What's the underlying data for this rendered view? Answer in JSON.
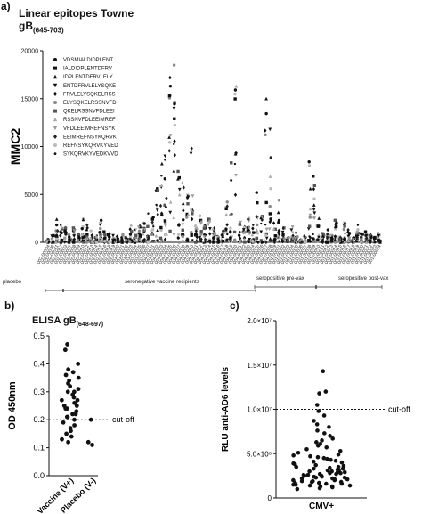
{
  "chart_data": [
    {
      "panel": "a)",
      "type": "scatter",
      "title_line1": "Linear epitopes Towne",
      "title_line2": "gB",
      "title_sub": "(645-703)",
      "ylabel": "MMC2",
      "ylim": [
        0,
        20000
      ],
      "yticks": [
        "0",
        "5000",
        "10000",
        "15000",
        "20000"
      ],
      "legend_position": "top-left",
      "legend": [
        {
          "label": "VDSMIALDIDPLENT",
          "marker": "circle",
          "color": "#111111"
        },
        {
          "label": "IALDIDPLENTDFRV",
          "marker": "square",
          "color": "#111111"
        },
        {
          "label": "IDPLENTDFRVLELY",
          "marker": "triangle-up",
          "color": "#111111"
        },
        {
          "label": "ENTDFRVLELYSQKE",
          "marker": "triangle-down",
          "color": "#111111"
        },
        {
          "label": "FRVLELYSQKELRSS",
          "marker": "diamond",
          "color": "#111111"
        },
        {
          "label": "ELYSQKELRSSNVFD",
          "marker": "circle",
          "color": "#888888"
        },
        {
          "label": "QKELRSSNVFDLEEI",
          "marker": "square",
          "color": "#555555"
        },
        {
          "label": "RSSNVFDLEEIMREF",
          "marker": "triangle-up",
          "color": "#aaaaaa"
        },
        {
          "label": "VFDLEEIMREFNSYK",
          "marker": "triangle-down",
          "color": "#999999"
        },
        {
          "label": "EEIMREFNSYKQRVK",
          "marker": "diamond",
          "color": "#222222"
        },
        {
          "label": "REFNSYKQRVKYVED",
          "marker": "circle",
          "color": "#bbbbbb"
        },
        {
          "label": "SYKQRVKYVEDKVVD",
          "marker": "dot",
          "color": "#111111"
        }
      ],
      "x_labels": [
        "002-00004",
        "002-00006",
        "002-00011",
        "002-00017",
        "002-00003",
        "002-00007",
        "002-00008",
        "002-00009",
        "002-00010",
        "002-00012",
        "002-00013",
        "002-00014",
        "002-00015",
        "002-00016",
        "002-00018",
        "002-00019",
        "002-00020",
        "003-00001",
        "003-00002",
        "003-00003",
        "003-00004",
        "003-00005",
        "003-00006",
        "003-00007",
        "004-00001",
        "004-00002",
        "004-00003",
        "004-00004",
        "004-00005",
        "004-00006",
        "004-00007",
        "004-00008",
        "004-00009",
        "004-00010",
        "004-00011",
        "004-00012",
        "004-00013",
        "004-00014",
        "004-00015",
        "004-00016",
        "004-00017",
        "004-00018",
        "004-00019",
        "004-00020",
        "004-00021",
        "004-00022",
        "004-00023",
        "004-00024",
        "004-00025",
        "004-00026",
        "004-00027",
        "004-00028",
        "004-00029",
        "001-00001",
        "001-00002",
        "001-00003",
        "001-00004",
        "001-00005",
        "001-00006",
        "001-00007",
        "001-00008",
        "001-00009",
        "001-00010",
        "001-00011",
        "001-00012",
        "001-00013",
        "001-00014",
        "001-00015",
        "001-00016",
        "001-00017",
        "001-00018",
        "001-00019",
        "001-00020",
        "001-00021",
        "001-00022",
        "001-00023",
        "001-00024"
      ],
      "group_labels": [
        "placebo",
        "seronegative vaccine recipients",
        "seropositive pre-vax",
        "seropositive post-vax"
      ],
      "group_ranges": [
        [
          0,
          3
        ],
        [
          4,
          47
        ],
        [
          48,
          61
        ],
        [
          62,
          76
        ]
      ],
      "series_max_values": [
        300,
        700,
        2400,
        1800,
        1500,
        800,
        1500,
        900,
        2400,
        1800,
        1200,
        700,
        2300,
        1100,
        900,
        700,
        600,
        800,
        500,
        1800,
        1300,
        1700,
        2000,
        3000,
        2600,
        5600,
        8200,
        9000,
        17200,
        18500,
        7400,
        6200,
        4900,
        9800,
        1700,
        2800,
        1700,
        2400,
        1500,
        600,
        1200,
        4200,
        8300,
        16300,
        2100,
        1600,
        2500,
        1800,
        5200,
        2700,
        15000,
        11800,
        2000,
        4400,
        1500,
        500,
        1600,
        1000,
        300,
        700,
        8400,
        6900,
        2500,
        900,
        1300,
        700,
        2300,
        600,
        2000,
        1300,
        500,
        1800,
        900,
        1100,
        800,
        500,
        900
      ]
    },
    {
      "panel": "b)",
      "type": "scatter",
      "title": "ELISA gB",
      "title_sub": "(648-697)",
      "ylabel": "OD 450nm",
      "ylim": [
        0.0,
        0.5
      ],
      "yticks": [
        "0.0",
        "0.1",
        "0.2",
        "0.3",
        "0.4",
        "0.5"
      ],
      "categories": [
        "Vaccine (V+)",
        "Placebo (V-)"
      ],
      "cutoff": 0.2,
      "cutoff_label": "cut-off",
      "values": [
        [
          0.47,
          0.45,
          0.4,
          0.38,
          0.37,
          0.36,
          0.35,
          0.34,
          0.33,
          0.32,
          0.31,
          0.3,
          0.3,
          0.29,
          0.28,
          0.27,
          0.27,
          0.26,
          0.25,
          0.25,
          0.24,
          0.24,
          0.23,
          0.22,
          0.22,
          0.21,
          0.21,
          0.2,
          0.19,
          0.18,
          0.17,
          0.16,
          0.15,
          0.14,
          0.13,
          0.12
        ],
        [
          0.2,
          0.12,
          0.11
        ]
      ]
    },
    {
      "panel": "c)",
      "type": "scatter",
      "ylabel": "RLU anti-AD6 levels",
      "ylim": [
        0,
        20000000
      ],
      "yticks": [
        "0",
        "5.0×10⁶",
        "1.0×10⁷",
        "1.5×10⁷",
        "2.0×10⁷"
      ],
      "categories": [
        "CMV+"
      ],
      "cutoff": 10000000,
      "cutoff_label": "cut-off",
      "values": [
        14300000,
        12000000,
        11800000,
        10500000,
        9800000,
        9300000,
        8700000,
        8300000,
        8000000,
        7600000,
        7300000,
        7000000,
        6700000,
        6500000,
        6300000,
        6100000,
        5900000,
        5700000,
        5500000,
        5300000,
        5100000,
        4900000,
        4800000,
        4700000,
        4600000,
        4500000,
        4400000,
        4300000,
        4200000,
        4100000,
        4000000,
        3900000,
        3800000,
        3700000,
        3600000,
        3500000,
        3500000,
        3400000,
        3300000,
        3300000,
        3200000,
        3100000,
        3100000,
        3000000,
        3000000,
        2900000,
        2900000,
        2800000,
        2800000,
        2700000,
        2700000,
        2600000,
        2600000,
        2500000,
        2500000,
        2400000,
        2400000,
        2300000,
        2300000,
        2200000,
        2200000,
        2100000,
        2100000,
        2000000,
        2000000,
        1900000,
        1900000,
        1800000,
        1800000,
        1700000,
        1700000,
        1600000,
        1600000,
        1500000,
        1500000,
        1400000,
        1400000,
        1300000,
        1300000,
        1200000,
        1100000,
        1000000
      ]
    }
  ]
}
